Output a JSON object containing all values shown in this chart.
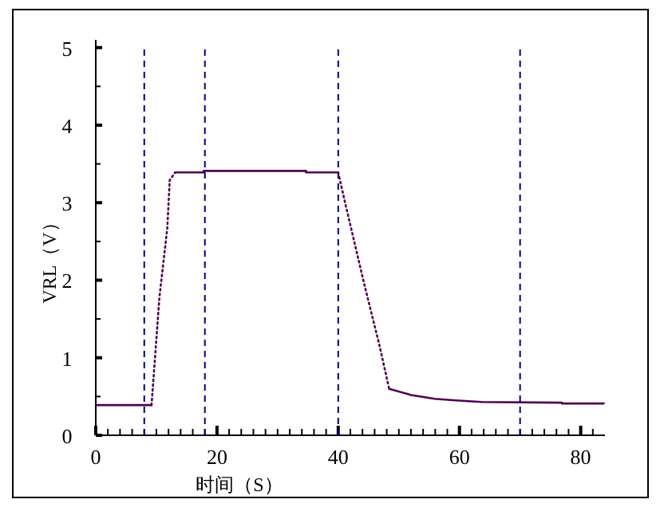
{
  "chart_data": {
    "type": "line",
    "xlabel": "时间（S）",
    "ylabel": "VRL（V）",
    "xlim": [
      0,
      84
    ],
    "ylim": [
      0,
      5.1
    ],
    "xticks": [
      0,
      {
        "value": 2,
        "label": null
      },
      {
        "value": 4,
        "label": null
      },
      {
        "value": 6,
        "label": null
      },
      {
        "value": 8,
        "label": null
      },
      {
        "value": 10,
        "label": null
      },
      {
        "value": 12,
        "label": null
      },
      {
        "value": 14,
        "label": null
      },
      {
        "value": 16,
        "label": null
      },
      {
        "value": 18,
        "label": null
      },
      20,
      {
        "value": 22,
        "label": null
      },
      {
        "value": 24,
        "label": null
      },
      {
        "value": 26,
        "label": null
      },
      {
        "value": 28,
        "label": null
      },
      {
        "value": 30,
        "label": null
      },
      {
        "value": 32,
        "label": null
      },
      {
        "value": 34,
        "label": null
      },
      {
        "value": 36,
        "label": null
      },
      {
        "value": 38,
        "label": null
      },
      40,
      {
        "value": 42,
        "label": null
      },
      {
        "value": 44,
        "label": null
      },
      {
        "value": 46,
        "label": null
      },
      {
        "value": 48,
        "label": null
      },
      {
        "value": 50,
        "label": null
      },
      {
        "value": 52,
        "label": null
      },
      {
        "value": 54,
        "label": null
      },
      {
        "value": 56,
        "label": null
      },
      {
        "value": 58,
        "label": null
      },
      60,
      {
        "value": 62,
        "label": null
      },
      {
        "value": 64,
        "label": null
      },
      {
        "value": 66,
        "label": null
      },
      {
        "value": 68,
        "label": null
      },
      {
        "value": 70,
        "label": null
      },
      {
        "value": 72,
        "label": null
      },
      {
        "value": 74,
        "label": null
      },
      {
        "value": 76,
        "label": null
      },
      {
        "value": 78,
        "label": null
      },
      80,
      {
        "value": 82,
        "label": null
      }
    ],
    "yticks": [
      0,
      {
        "value": 0.5,
        "label": null
      },
      1,
      {
        "value": 1.5,
        "label": null
      },
      2,
      {
        "value": 2.5,
        "label": null
      },
      3,
      {
        "value": 3.5,
        "label": null
      },
      4,
      {
        "value": 4.5,
        "label": null
      },
      5
    ],
    "series": [
      {
        "color": "#500050",
        "line_style": "solid",
        "x": [
          0,
          9.2
        ],
        "values": [
          0.39,
          0.39
        ]
      },
      {
        "color": "#500050",
        "line_style": "dotted",
        "x": [
          9.2,
          10.5,
          11.8,
          12.2,
          13.1
        ],
        "values": [
          0.39,
          1.78,
          2.67,
          3.29,
          3.39
        ]
      },
      {
        "color": "#500050",
        "line_style": "solid",
        "x": [
          13.1,
          17.8,
          17.8,
          34.7,
          34.7,
          40
        ],
        "values": [
          3.39,
          3.39,
          3.41,
          3.41,
          3.39,
          3.39
        ]
      },
      {
        "color": "#500050",
        "line_style": "dotted",
        "x": [
          40,
          41.1,
          44.2,
          46.8,
          48.4
        ],
        "values": [
          3.39,
          3.01,
          1.98,
          1.16,
          0.6
        ]
      },
      {
        "color": "#500050",
        "line_style": "solid",
        "x": [
          48.4,
          52,
          55.9,
          59.4,
          63.7,
          76.9,
          76.9,
          83.8
        ],
        "values": [
          0.6,
          0.52,
          0.47,
          0.45,
          0.43,
          0.42,
          0.41,
          0.41
        ]
      }
    ],
    "ref_lines": [
      {
        "axis": "x",
        "value": 8,
        "color": "#000080",
        "line_style": "dashed"
      },
      {
        "axis": "x",
        "value": 18,
        "color": "#000080",
        "line_style": "dashed"
      },
      {
        "axis": "x",
        "value": 40,
        "color": "#000080",
        "line_style": "dashed"
      },
      {
        "axis": "x",
        "value": 70,
        "color": "#000080",
        "line_style": "dashed"
      }
    ]
  }
}
